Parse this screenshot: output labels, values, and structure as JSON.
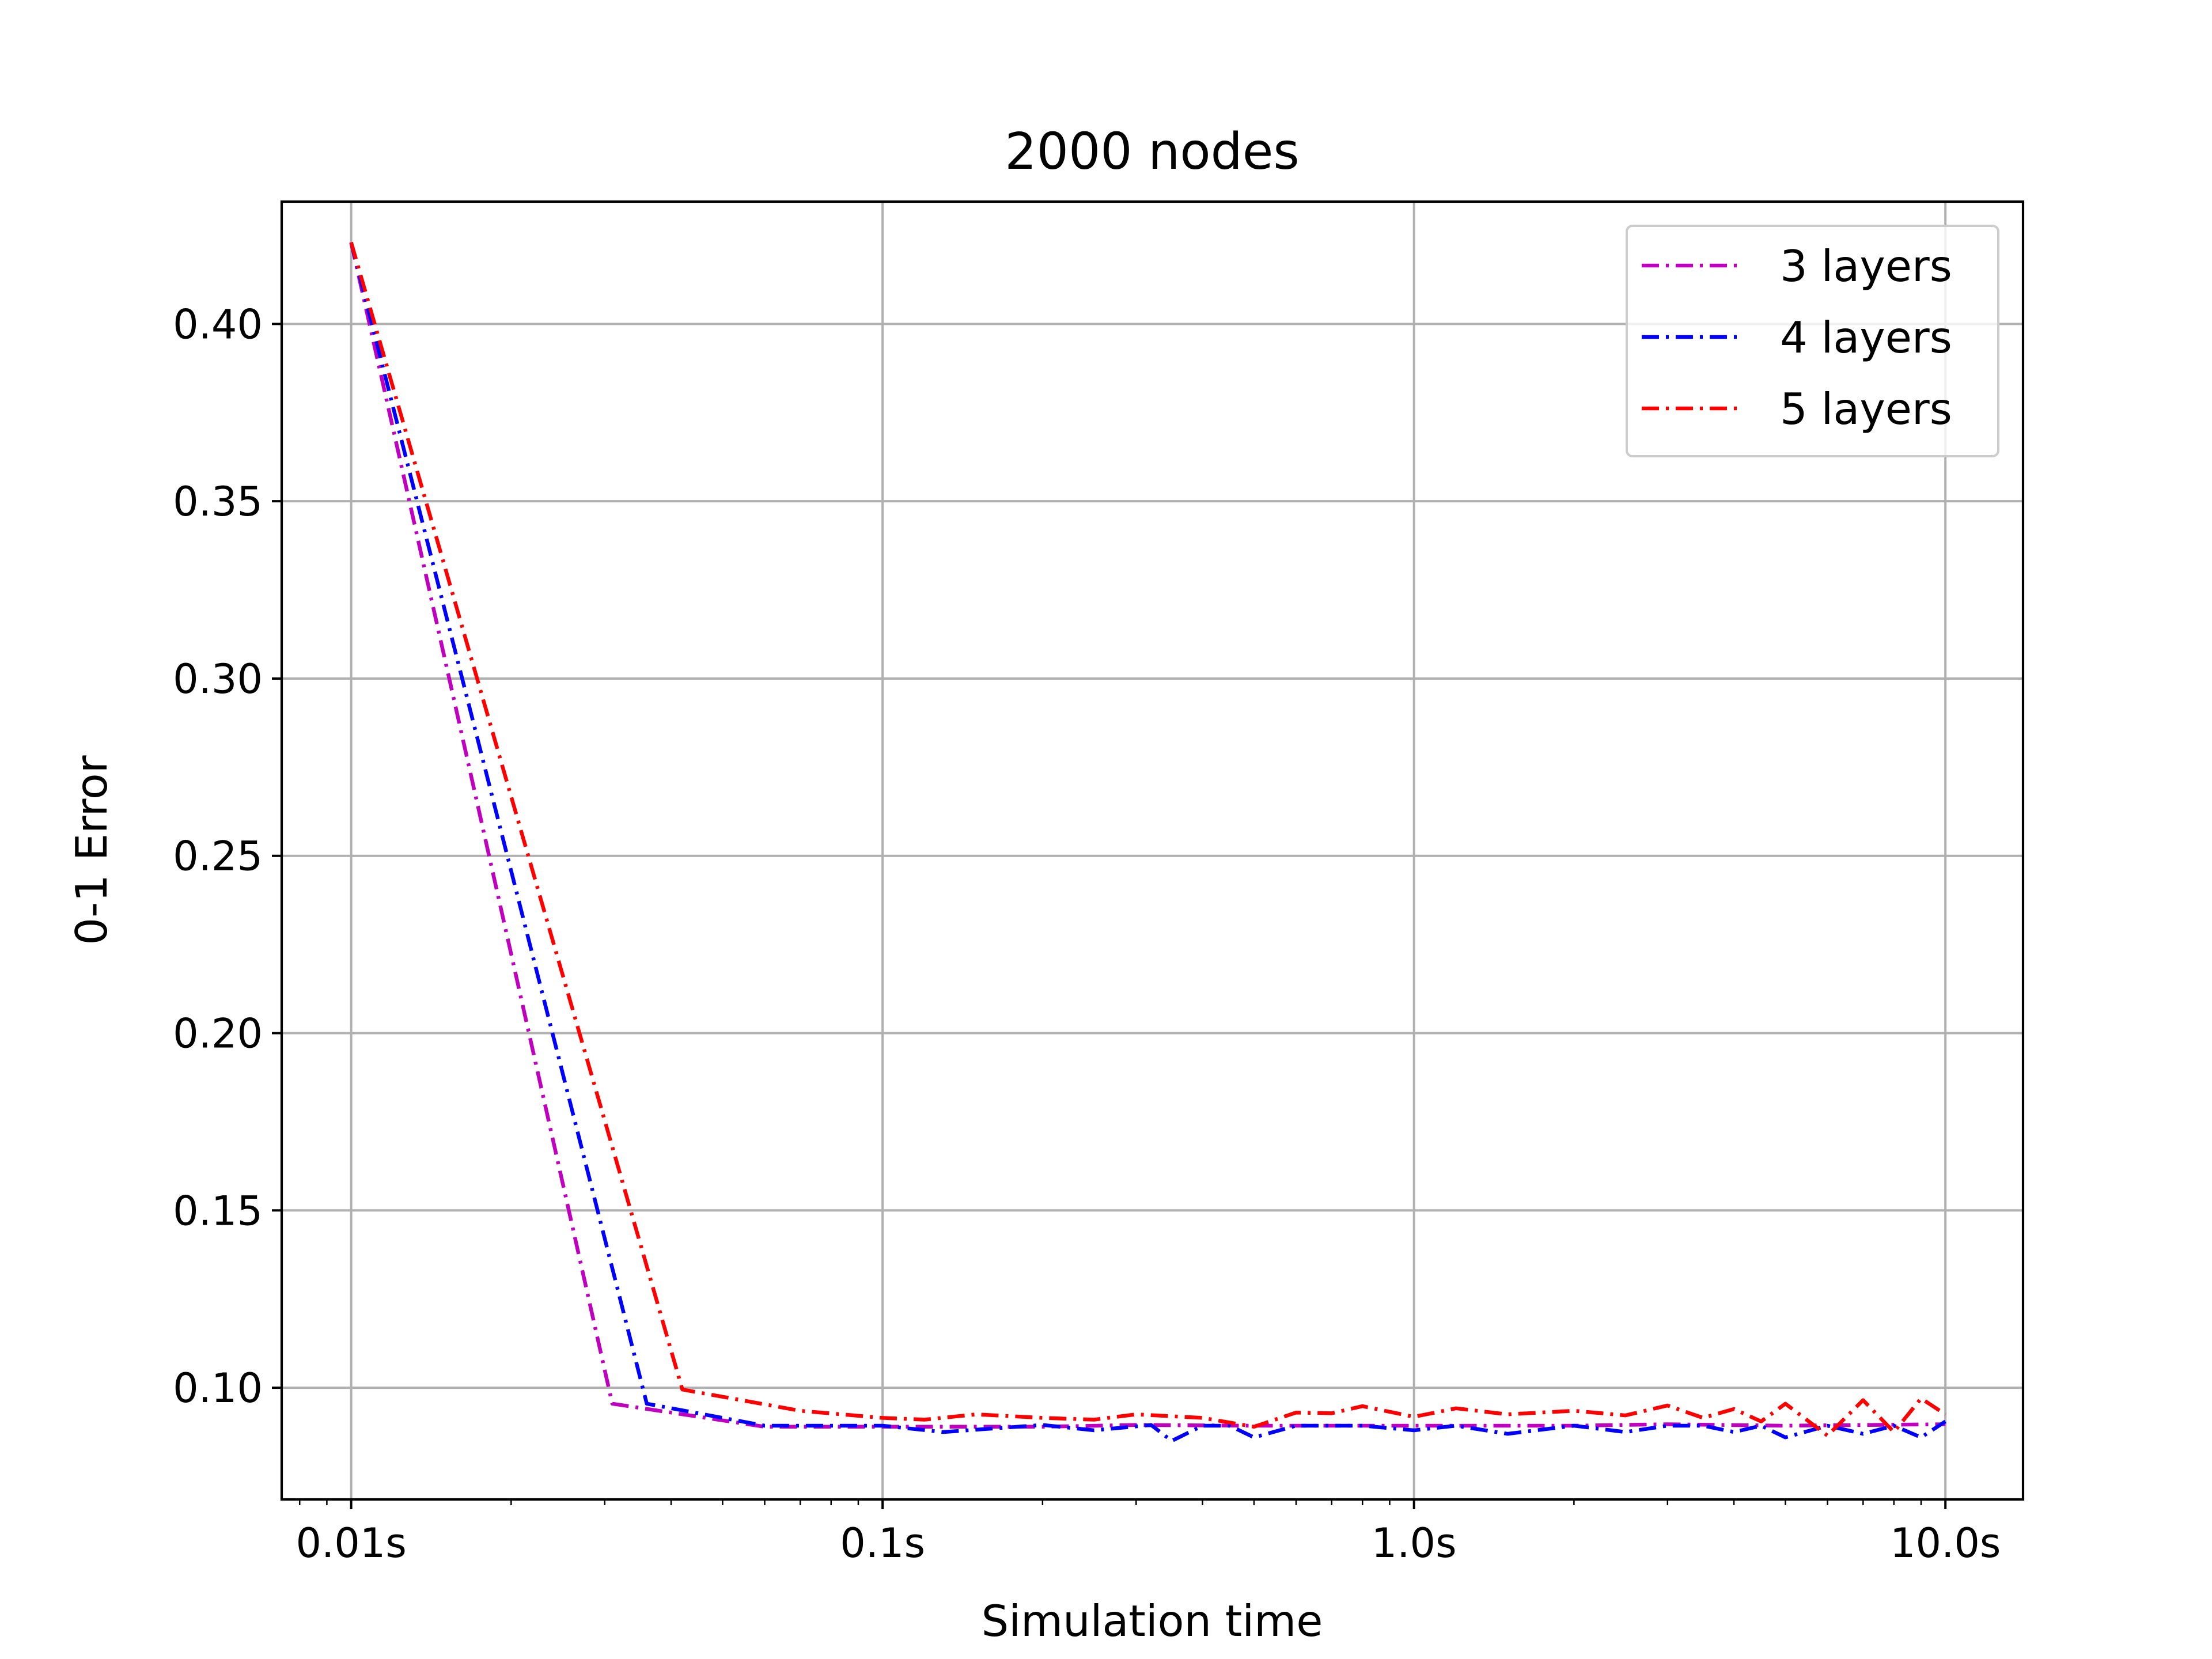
{
  "chart_data": {
    "type": "line",
    "title": "2000 nodes",
    "xlabel": "Simulation time",
    "ylabel": "0-1 Error",
    "x_scale": "log",
    "xlim": [
      0.0074,
      14.0
    ],
    "ylim": [
      0.0685,
      0.4345
    ],
    "x_ticks": [
      {
        "value": 0.01,
        "label": "0.01s"
      },
      {
        "value": 0.1,
        "label": "0.1s"
      },
      {
        "value": 1.0,
        "label": "1.0s"
      },
      {
        "value": 10.0,
        "label": "10.0s"
      }
    ],
    "y_ticks": [
      {
        "value": 0.1,
        "label": "0.10"
      },
      {
        "value": 0.15,
        "label": "0.15"
      },
      {
        "value": 0.2,
        "label": "0.20"
      },
      {
        "value": 0.25,
        "label": "0.25"
      },
      {
        "value": 0.3,
        "label": "0.30"
      },
      {
        "value": 0.35,
        "label": "0.35"
      },
      {
        "value": 0.4,
        "label": "0.40"
      }
    ],
    "grid": true,
    "legend_position": "top-right",
    "series": [
      {
        "name": "3 layers",
        "color": "#bf00bf",
        "line_style": "dash-dot",
        "x": [
          0.01,
          0.031,
          0.06,
          0.1,
          0.2,
          0.3,
          0.5,
          1.0,
          2.0,
          3.0,
          5.0,
          10.0
        ],
        "y": [
          0.423,
          0.0955,
          0.089,
          0.089,
          0.089,
          0.0895,
          0.0893,
          0.0893,
          0.0893,
          0.0897,
          0.0893,
          0.0897
        ]
      },
      {
        "name": "4 layers",
        "color": "#0000ff",
        "line_style": "dash-dot",
        "x": [
          0.01,
          0.036,
          0.06,
          0.1,
          0.13,
          0.2,
          0.25,
          0.32,
          0.35,
          0.4,
          0.45,
          0.5,
          0.6,
          0.8,
          1.0,
          1.2,
          1.5,
          2.0,
          2.5,
          3.0,
          3.5,
          4.0,
          4.5,
          5.0,
          6.0,
          7.0,
          8.0,
          9.0,
          10.0
        ],
        "y": [
          0.423,
          0.0955,
          0.0893,
          0.0893,
          0.0875,
          0.0895,
          0.088,
          0.0895,
          0.085,
          0.0893,
          0.0893,
          0.086,
          0.0893,
          0.0893,
          0.088,
          0.0893,
          0.087,
          0.0893,
          0.0875,
          0.0893,
          0.0893,
          0.0875,
          0.0893,
          0.086,
          0.0893,
          0.087,
          0.0893,
          0.086,
          0.0905
        ]
      },
      {
        "name": "5 layers",
        "color": "#ff0000",
        "line_style": "dash-dot",
        "x": [
          0.01,
          0.042,
          0.07,
          0.1,
          0.12,
          0.15,
          0.2,
          0.25,
          0.3,
          0.4,
          0.5,
          0.6,
          0.7,
          0.8,
          1.0,
          1.2,
          1.5,
          2.0,
          2.5,
          3.0,
          3.5,
          4.0,
          4.5,
          5.0,
          6.0,
          7.0,
          8.0,
          9.0,
          10.0
        ],
        "y": [
          0.423,
          0.0995,
          0.0935,
          0.0915,
          0.091,
          0.0925,
          0.0915,
          0.091,
          0.0925,
          0.0915,
          0.089,
          0.093,
          0.0928,
          0.0948,
          0.0918,
          0.0942,
          0.0925,
          0.0935,
          0.0922,
          0.095,
          0.0915,
          0.094,
          0.0905,
          0.0955,
          0.0865,
          0.0965,
          0.0875,
          0.097,
          0.0925
        ]
      }
    ]
  }
}
